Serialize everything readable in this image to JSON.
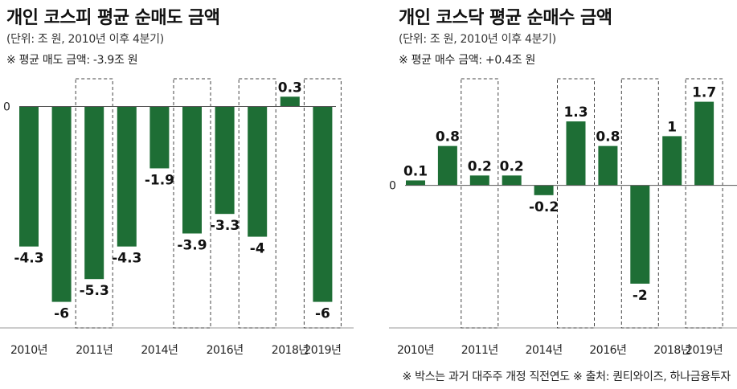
{
  "colors": {
    "bar": "#1e6e35",
    "axis": "#555555",
    "box": "#444444"
  },
  "chart_data": [
    {
      "type": "bar",
      "title": "개인  코스피 평균 순매도 금액",
      "unit_note": "(단위: 조 원, 2010년 이후 4분기)",
      "avg_note": "※ 평균 매도 금액: -3.9조 원",
      "zero_label": "0",
      "values": [
        -4.3,
        -6,
        -5.3,
        -4.3,
        -1.9,
        -3.9,
        -3.3,
        -4,
        0.3,
        -6
      ],
      "value_labels": [
        "-4.3",
        "-6",
        "-5.3",
        "-4.3",
        "-1.9",
        "-3.9",
        "-3.3",
        "-4",
        "0.3",
        "-6"
      ],
      "xtick_labels": [
        {
          "bar": 0,
          "text": "2010년"
        },
        {
          "bar": 2,
          "text": "2011년"
        },
        {
          "bar": 4,
          "text": "2014년"
        },
        {
          "bar": 6,
          "text": "2016년"
        },
        {
          "bar": 8,
          "text": "2018년"
        },
        {
          "bar": 9,
          "text": "2019년"
        }
      ],
      "boxed": [
        2,
        5,
        7,
        9
      ],
      "ylim": [
        -6.8,
        0.9
      ]
    },
    {
      "type": "bar",
      "title": "개인  코스닥 평균 순매수 금액",
      "unit_note": "(단위: 조 원, 2010년 이후 4분기)",
      "avg_note": "※ 평균 매수 금액: +0.4조 원",
      "zero_label": "0",
      "values": [
        0.1,
        0.8,
        0.2,
        0.2,
        -0.2,
        1.3,
        0.8,
        -2,
        1,
        1.7
      ],
      "value_labels": [
        "0.1",
        "0.8",
        "0.2",
        "0.2",
        "-0.2",
        "1.3",
        "0.8",
        "-2",
        "1",
        "1.7"
      ],
      "xtick_labels": [
        {
          "bar": 0,
          "text": "2010년"
        },
        {
          "bar": 2,
          "text": "2011년"
        },
        {
          "bar": 4,
          "text": "2014년"
        },
        {
          "bar": 6,
          "text": "2016년"
        },
        {
          "bar": 8,
          "text": "2018년"
        },
        {
          "bar": 9,
          "text": "2019년"
        }
      ],
      "boxed": [
        2,
        5,
        7,
        9
      ],
      "ylim": [
        -2.9,
        2.2
      ]
    }
  ],
  "footer": "※ 박스는 과거 대주주 개정 직전연도  ※ 출처: 퀀티와이즈, 하나금융투자"
}
